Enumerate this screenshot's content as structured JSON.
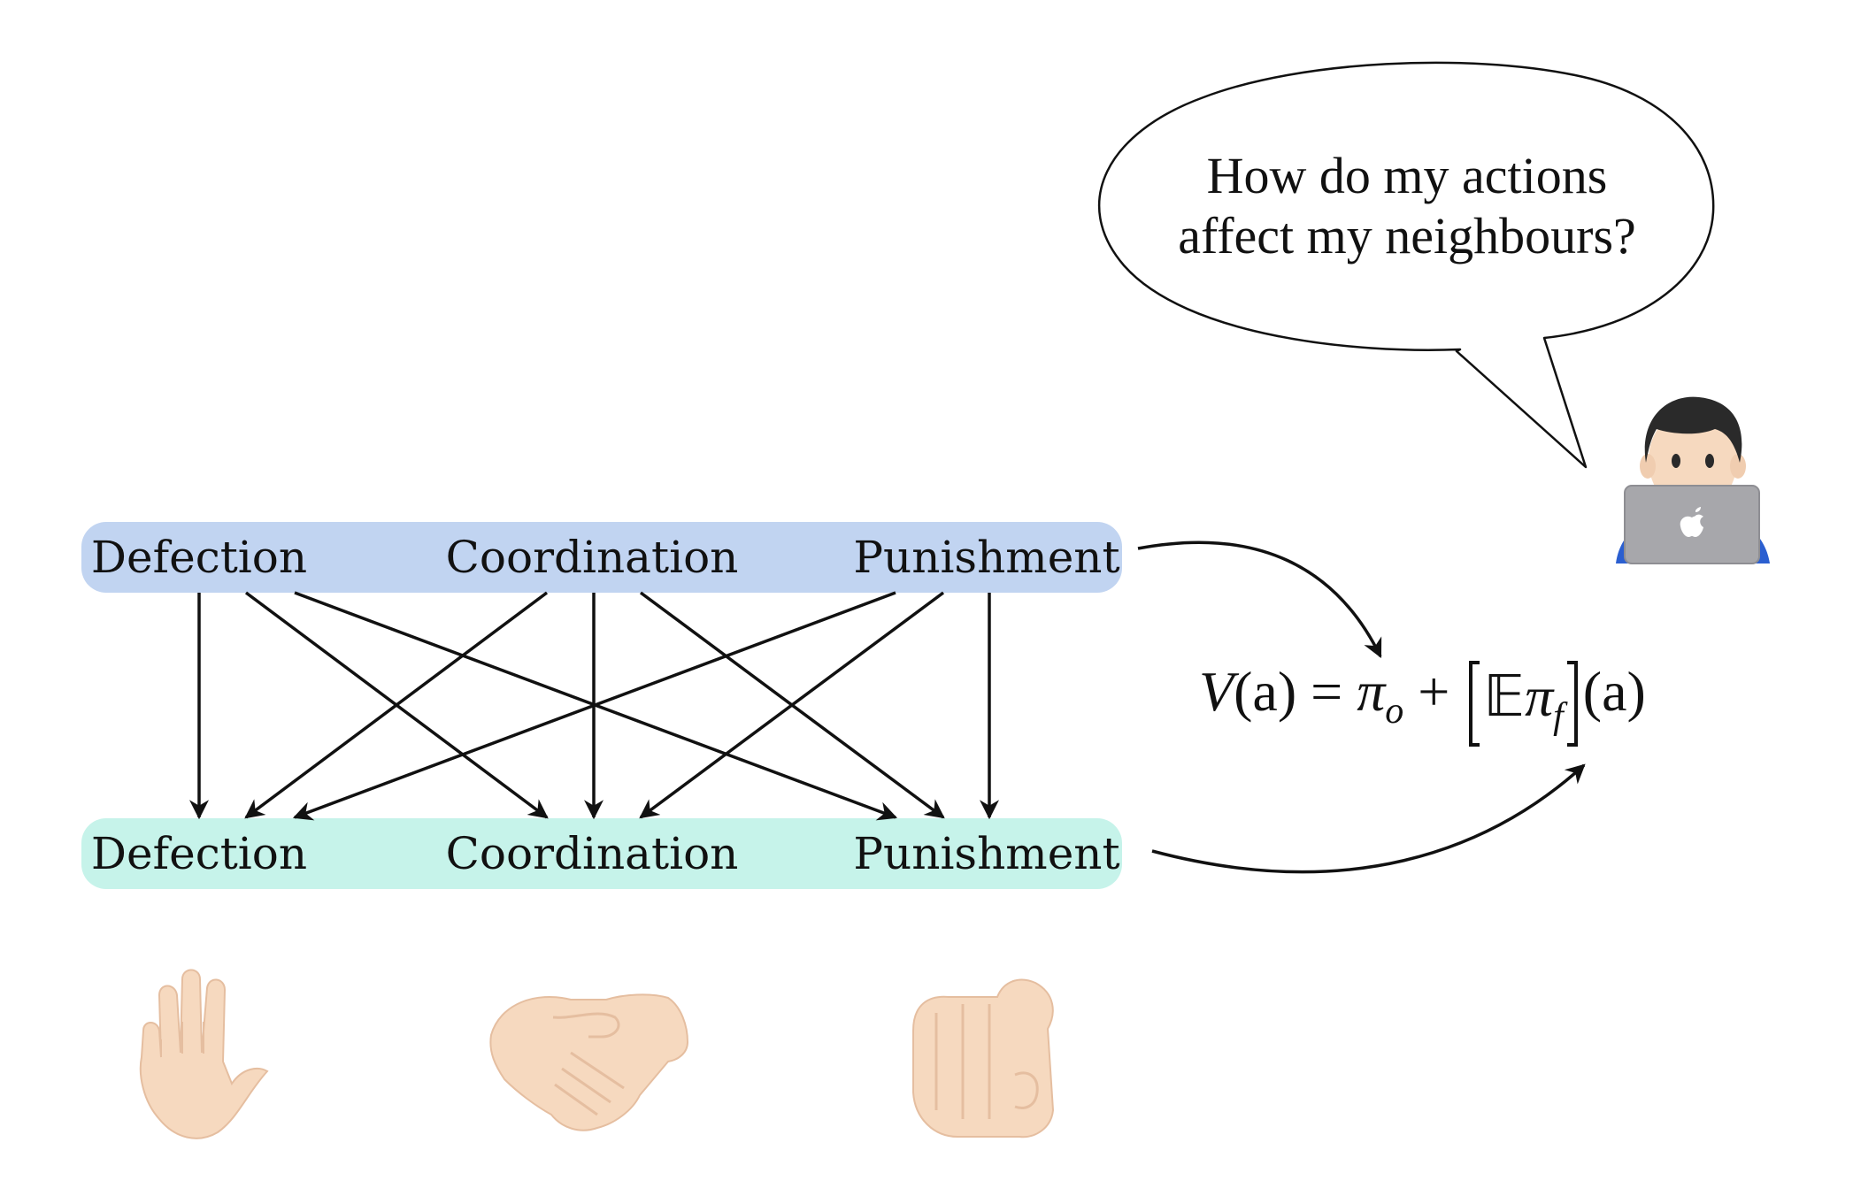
{
  "colors": {
    "top_row_fill": "#c1d4f1",
    "bottom_row_fill": "#c6f3ea",
    "stroke": "#111111",
    "skin": "#f6d9bf",
    "skin_shadow": "#e5bea0",
    "hair": "#2a2a2a",
    "laptop": "#a7a7ab",
    "shirt": "#2b5fd0"
  },
  "top_row": {
    "labels": [
      "Defection",
      "Coordination",
      "Punishment"
    ]
  },
  "bottom_row": {
    "labels": [
      "Defection",
      "Coordination",
      "Punishment"
    ]
  },
  "speech_bubble": {
    "line1": "How do my actions",
    "line2": "affect my neighbours?"
  },
  "formula": {
    "v": "V",
    "a1": "(a)",
    "eq": " = ",
    "pi": "π",
    "o": "o",
    "plus": " + ",
    "E": "𝔼",
    "pi2": "π",
    "f": "f",
    "a2": "(a)"
  },
  "icons": {
    "person": "person-with-laptop-icon",
    "defection": "raised-hand-icon",
    "coordination": "handshake-icon",
    "punishment": "pointing-finger-icon"
  }
}
